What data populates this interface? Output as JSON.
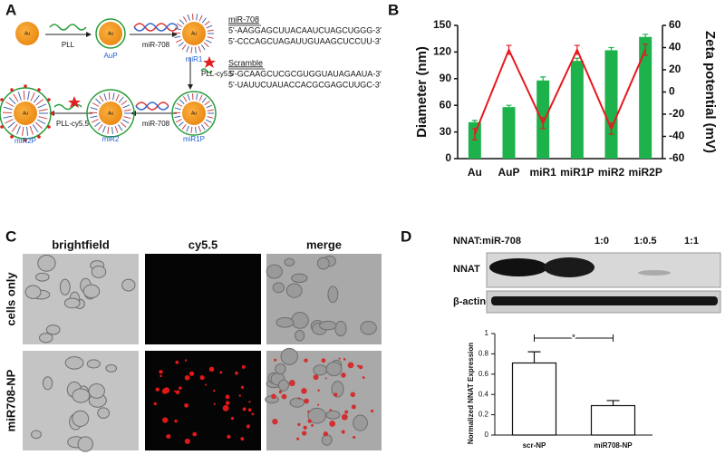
{
  "panel_labels": [
    "A",
    "B",
    "C",
    "D"
  ],
  "panel_a": {
    "core": "Au",
    "particles": [
      "AuP",
      "miR1",
      "miR1P",
      "miR2",
      "miR2P"
    ],
    "reagents": [
      "PLL",
      "miR-708",
      "PLL-cy5.5",
      "miR-708",
      "PLL-cy5.5"
    ],
    "sequences": [
      {
        "title": "miR-708",
        "lines": [
          "5'-AAGGAGCUUACAAUCUAGCUGGG-3'",
          "5'-CCCAGCUAGAUUGUAAGCUCCUU-3'"
        ]
      },
      {
        "title": "Scramble",
        "lines": [
          "5'-GCAAGCUCGCGUGGUAUAGAAUA-3'",
          "5'-UAUUCUAUACCACGCGAGCUUGC-3'"
        ]
      }
    ]
  },
  "panel_c": {
    "columns": [
      "brightfield",
      "cy5.5",
      "merge"
    ],
    "rows": [
      "cells only",
      "miR708-NP"
    ]
  },
  "panel_d": {
    "blot_header": "NNAT:miR-708",
    "ratios": [
      "1:0",
      "1:0.5",
      "1:1"
    ],
    "bands": [
      "NNAT",
      "β-actin"
    ]
  },
  "chart_data": [
    {
      "type": "bar",
      "categories": [
        "Au",
        "AuP",
        "miR1",
        "miR1P",
        "miR2",
        "miR2P"
      ],
      "series": [
        {
          "type": "bar",
          "color": "#1db24b",
          "values": [
            41,
            58,
            88,
            110,
            122,
            137
          ],
          "errors": [
            2,
            2,
            4,
            3,
            3,
            3
          ]
        },
        {
          "type": "line",
          "axis": "y2",
          "color": "#e8191e",
          "values": [
            -38,
            38,
            -28,
            38,
            -33,
            38
          ],
          "errors": [
            5,
            4,
            5,
            4,
            5,
            5
          ]
        }
      ],
      "ylabel": "Diameter (nm)",
      "y2label": "Zeta potential (mV)",
      "ylim": [
        0,
        150
      ],
      "yticks": [
        0,
        30,
        60,
        90,
        120,
        150
      ],
      "y2lim": [
        -60,
        60
      ],
      "y2ticks": [
        -60,
        -40,
        -20,
        0,
        20,
        40,
        60
      ]
    },
    {
      "type": "bar",
      "categories": [
        "scr-NP",
        "miR708-NP"
      ],
      "values": [
        0.71,
        0.29
      ],
      "errors": [
        0.11,
        0.05
      ],
      "color": "#ffffff",
      "ylabel": "Normalized NNAT Expression",
      "ylim": [
        0,
        1
      ],
      "yticks": [
        0,
        0.2,
        0.4,
        0.6,
        0.8,
        1
      ],
      "annotation": "*"
    }
  ]
}
